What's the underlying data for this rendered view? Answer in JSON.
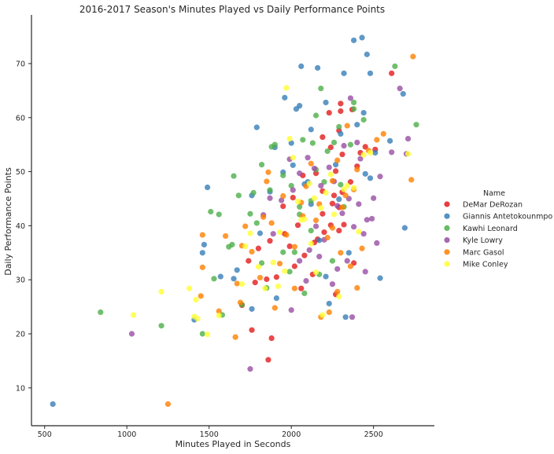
{
  "chart_data": {
    "type": "scatter",
    "title": "2016-2017 Season's Minutes Played vs Daily Performance Points",
    "xlabel": "Minutes Played in Seconds",
    "ylabel": "Daily Performance Points",
    "xlim": [
      420,
      2870
    ],
    "ylim": [
      3,
      79
    ],
    "xticks": [
      500,
      1000,
      1500,
      2000,
      2500
    ],
    "yticks": [
      10,
      20,
      30,
      40,
      50,
      60,
      70
    ],
    "grid": false,
    "legend": {
      "title": "Name",
      "placement": "right"
    },
    "series": [
      {
        "name": "DeMar DeRozan",
        "color": "#e41a1c",
        "points": [
          [
            1860,
            15.2
          ],
          [
            1880,
            19.2
          ],
          [
            1760,
            20.7
          ],
          [
            1700,
            25.3
          ],
          [
            1780,
            29.5
          ],
          [
            1850,
            30.1
          ],
          [
            1910,
            30.5
          ],
          [
            1740,
            33.5
          ],
          [
            1800,
            35.8
          ],
          [
            1870,
            37.2
          ],
          [
            1960,
            38.5
          ],
          [
            1990,
            36.2
          ],
          [
            2020,
            32.5
          ],
          [
            2080,
            34.5
          ],
          [
            2140,
            36.9
          ],
          [
            2200,
            38.8
          ],
          [
            2240,
            40.1
          ],
          [
            2290,
            39.1
          ],
          [
            2320,
            40.2
          ],
          [
            2190,
            42.2
          ],
          [
            2250,
            44.1
          ],
          [
            2260,
            45.6
          ],
          [
            2190,
            46.4
          ],
          [
            2310,
            46.2
          ],
          [
            2360,
            48.1
          ],
          [
            2070,
            49.3
          ],
          [
            2270,
            50.1
          ],
          [
            2310,
            53.2
          ],
          [
            2240,
            54.5
          ],
          [
            2420,
            53.5
          ],
          [
            2190,
            56.4
          ],
          [
            2290,
            57.6
          ],
          [
            2230,
            60.9
          ],
          [
            2300,
            61.2
          ],
          [
            2300,
            62.6
          ],
          [
            2370,
            61.5
          ],
          [
            2450,
            54.6
          ],
          [
            2510,
            54.1
          ],
          [
            2610,
            68.2
          ],
          [
            2040,
            40.1
          ],
          [
            2160,
            37.5
          ],
          [
            1950,
            43.6
          ],
          [
            2130,
            31.0
          ],
          [
            2060,
            28.4
          ],
          [
            2270,
            27.3
          ],
          [
            2380,
            33.1
          ],
          [
            2290,
            43.4
          ],
          [
            2400,
            51.0
          ],
          [
            2150,
            49.7
          ],
          [
            2010,
            45.2
          ]
        ]
      },
      {
        "name": "Giannis Antetokounmpo",
        "color": "#377eb8",
        "points": [
          [
            550,
            7.0
          ],
          [
            1410,
            22.6
          ],
          [
            1460,
            35.0
          ],
          [
            1470,
            36.5
          ],
          [
            1490,
            47.1
          ],
          [
            1570,
            30.6
          ],
          [
            1650,
            30.2
          ],
          [
            1670,
            31.8
          ],
          [
            1760,
            45.6
          ],
          [
            1790,
            58.2
          ],
          [
            1870,
            46.3
          ],
          [
            1900,
            54.5
          ],
          [
            1960,
            63.7
          ],
          [
            2000,
            55.3
          ],
          [
            2030,
            61.6
          ],
          [
            2050,
            62.2
          ],
          [
            2060,
            69.5
          ],
          [
            2120,
            57.8
          ],
          [
            2160,
            69.2
          ],
          [
            2210,
            62.8
          ],
          [
            2320,
            68.2
          ],
          [
            2380,
            74.3
          ],
          [
            2430,
            74.8
          ],
          [
            2460,
            71.7
          ],
          [
            2480,
            68.2
          ],
          [
            2540,
            30.3
          ],
          [
            2600,
            55.7
          ],
          [
            2680,
            64.4
          ],
          [
            2690,
            39.6
          ],
          [
            2510,
            53.5
          ],
          [
            2450,
            49.6
          ],
          [
            2350,
            35.0
          ],
          [
            2330,
            23.1
          ],
          [
            2230,
            25.6
          ],
          [
            2210,
            30.6
          ],
          [
            2120,
            44.0
          ],
          [
            2100,
            48.1
          ],
          [
            2300,
            57.0
          ],
          [
            2400,
            58.7
          ],
          [
            2010,
            51.2
          ],
          [
            1950,
            49.9
          ],
          [
            1810,
            38.6
          ],
          [
            1910,
            26.6
          ],
          [
            1760,
            24.6
          ],
          [
            2170,
            37.3
          ],
          [
            2270,
            51.3
          ],
          [
            2440,
            60.9
          ],
          [
            2080,
            47.7
          ],
          [
            2290,
            44.9
          ],
          [
            2480,
            48.8
          ]
        ]
      },
      {
        "name": "Kawhi Leonard",
        "color": "#4daf4a",
        "points": [
          [
            840,
            24.0
          ],
          [
            1210,
            21.5
          ],
          [
            1460,
            20.0
          ],
          [
            1530,
            30.2
          ],
          [
            1510,
            42.6
          ],
          [
            1560,
            42.1
          ],
          [
            1580,
            23.5
          ],
          [
            1640,
            36.5
          ],
          [
            1650,
            49.2
          ],
          [
            1680,
            45.6
          ],
          [
            1700,
            25.4
          ],
          [
            1770,
            46.1
          ],
          [
            1820,
            51.3
          ],
          [
            1880,
            54.6
          ],
          [
            1900,
            55.0
          ],
          [
            1950,
            49.3
          ],
          [
            2000,
            47.4
          ],
          [
            2070,
            55.9
          ],
          [
            2130,
            55.3
          ],
          [
            2150,
            60.4
          ],
          [
            2180,
            65.4
          ],
          [
            2260,
            55.4
          ],
          [
            2290,
            58.3
          ],
          [
            2380,
            61.6
          ],
          [
            2380,
            62.8
          ],
          [
            2440,
            59.6
          ],
          [
            2630,
            69.5
          ],
          [
            2760,
            58.7
          ],
          [
            2050,
            42.1
          ],
          [
            2120,
            39.1
          ],
          [
            2200,
            48.1
          ],
          [
            2320,
            43.5
          ],
          [
            2360,
            55.0
          ],
          [
            2020,
            35.1
          ],
          [
            1990,
            31.5
          ],
          [
            1850,
            28.5
          ],
          [
            1820,
            33.1
          ],
          [
            1750,
            42.2
          ],
          [
            1620,
            36.1
          ],
          [
            2220,
            53.8
          ],
          [
            2300,
            47.6
          ],
          [
            2120,
            44.6
          ],
          [
            2170,
            31.0
          ],
          [
            2080,
            27.5
          ],
          [
            2250,
            33.5
          ],
          [
            2150,
            50.4
          ],
          [
            1950,
            35.1
          ],
          [
            2050,
            43.5
          ],
          [
            1870,
            46.6
          ],
          [
            1790,
            40.5
          ]
        ]
      },
      {
        "name": "Kyle Lowry",
        "color": "#984ea3",
        "points": [
          [
            1030,
            20.0
          ],
          [
            1750,
            13.5
          ],
          [
            2370,
            23.1
          ],
          [
            2450,
            31.5
          ],
          [
            2520,
            36.8
          ],
          [
            2460,
            41.1
          ],
          [
            2490,
            41.3
          ],
          [
            2500,
            45.1
          ],
          [
            2540,
            49.1
          ],
          [
            2610,
            53.6
          ],
          [
            2660,
            65.4
          ],
          [
            2710,
            56.1
          ],
          [
            2700,
            53.3
          ],
          [
            2420,
            52.4
          ],
          [
            2360,
            63.6
          ],
          [
            2400,
            55.4
          ],
          [
            2350,
            45.0
          ],
          [
            2280,
            43.7
          ],
          [
            2180,
            47.4
          ],
          [
            2140,
            50.6
          ],
          [
            2100,
            52.6
          ],
          [
            1990,
            52.3
          ],
          [
            1940,
            44.7
          ],
          [
            1870,
            45.1
          ],
          [
            1830,
            42.0
          ],
          [
            1890,
            38.5
          ],
          [
            2050,
            33.5
          ],
          [
            2110,
            35.5
          ],
          [
            2090,
            29.8
          ],
          [
            2000,
            24.4
          ],
          [
            2170,
            34.3
          ],
          [
            2200,
            37.4
          ],
          [
            2250,
            29.2
          ],
          [
            2280,
            32.0
          ],
          [
            2340,
            33.5
          ],
          [
            2380,
            39.8
          ],
          [
            2440,
            38.5
          ],
          [
            2320,
            54.8
          ],
          [
            2230,
            50.8
          ],
          [
            2010,
            46.6
          ],
          [
            2050,
            49.7
          ],
          [
            2150,
            39.9
          ],
          [
            2310,
            42.3
          ],
          [
            2410,
            44.0
          ],
          [
            2260,
            48.2
          ]
        ]
      },
      {
        "name": "Marc Gasol",
        "color": "#ff7f00",
        "points": [
          [
            1250,
            7.0
          ],
          [
            1450,
            27.0
          ],
          [
            1460,
            32.3
          ],
          [
            1460,
            38.3
          ],
          [
            1560,
            24.2
          ],
          [
            1600,
            38.1
          ],
          [
            1660,
            19.4
          ],
          [
            1670,
            29.3
          ],
          [
            1690,
            25.8
          ],
          [
            1700,
            36.3
          ],
          [
            1720,
            39.9
          ],
          [
            1760,
            35.2
          ],
          [
            1810,
            30.4
          ],
          [
            1830,
            41.6
          ],
          [
            1850,
            48.2
          ],
          [
            1860,
            49.9
          ],
          [
            1900,
            24.8
          ],
          [
            1930,
            33.0
          ],
          [
            1970,
            38.3
          ],
          [
            2020,
            28.4
          ],
          [
            2070,
            41.8
          ],
          [
            2090,
            47.3
          ],
          [
            2120,
            51.5
          ],
          [
            2170,
            44.0
          ],
          [
            2220,
            37.8
          ],
          [
            2250,
            48.3
          ],
          [
            2280,
            52.1
          ],
          [
            2300,
            35.0
          ],
          [
            2310,
            43.4
          ],
          [
            2340,
            58.5
          ],
          [
            2330,
            45.6
          ],
          [
            2380,
            46.7
          ],
          [
            2400,
            50.4
          ],
          [
            2430,
            35.8
          ],
          [
            2470,
            53.9
          ],
          [
            2520,
            55.9
          ],
          [
            2560,
            57.0
          ],
          [
            2740,
            71.3
          ],
          [
            2730,
            48.5
          ],
          [
            2360,
            32.5
          ],
          [
            2280,
            27.8
          ],
          [
            2230,
            24.0
          ],
          [
            2180,
            23.1
          ],
          [
            2150,
            41.0
          ],
          [
            2020,
            36.1
          ],
          [
            1950,
            45.5
          ],
          [
            1880,
            40.5
          ],
          [
            2060,
            44.3
          ],
          [
            2250,
            39.6
          ],
          [
            2400,
            28.5
          ]
        ]
      },
      {
        "name": "Mike Conley",
        "color": "#ffff33",
        "points": [
          [
            1040,
            23.5
          ],
          [
            1210,
            27.8
          ],
          [
            1380,
            28.4
          ],
          [
            1410,
            23.2
          ],
          [
            1420,
            26.3
          ],
          [
            1430,
            22.8
          ],
          [
            1490,
            19.9
          ],
          [
            1560,
            23.4
          ],
          [
            1700,
            29.2
          ],
          [
            1720,
            36.2
          ],
          [
            1750,
            38.6
          ],
          [
            1800,
            32.4
          ],
          [
            1840,
            28.4
          ],
          [
            1890,
            33.2
          ],
          [
            1920,
            28.8
          ],
          [
            1960,
            31.6
          ],
          [
            1970,
            65.5
          ],
          [
            1990,
            56.1
          ],
          [
            2010,
            52.6
          ],
          [
            2040,
            44.5
          ],
          [
            2080,
            41.2
          ],
          [
            2110,
            47.8
          ],
          [
            2140,
            45.1
          ],
          [
            2180,
            43.3
          ],
          [
            2210,
            46.1
          ],
          [
            2240,
            49.5
          ],
          [
            2260,
            42.1
          ],
          [
            2290,
            26.9
          ],
          [
            2320,
            46.7
          ],
          [
            2340,
            47.4
          ],
          [
            2380,
            47.0
          ],
          [
            2410,
            38.9
          ],
          [
            2440,
            53.1
          ],
          [
            2480,
            53.5
          ],
          [
            2710,
            53.3
          ],
          [
            2190,
            23.5
          ],
          [
            2150,
            31.4
          ],
          [
            1930,
            38.8
          ],
          [
            2060,
            41.1
          ],
          [
            2120,
            36.7
          ]
        ]
      }
    ]
  }
}
